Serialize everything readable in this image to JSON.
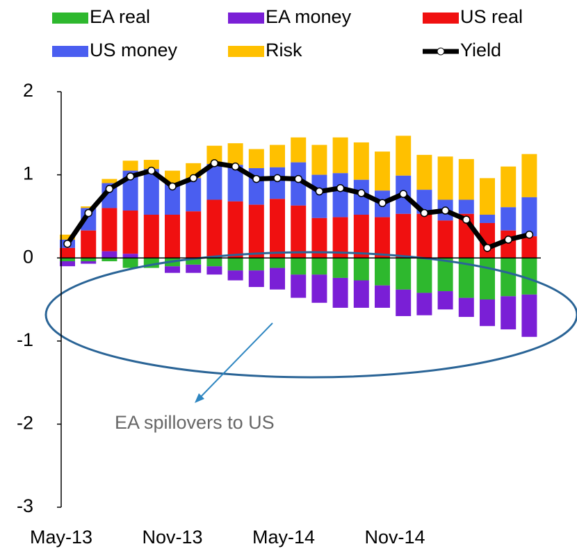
{
  "chart_data": {
    "type": "bar",
    "categories": [
      "May-13",
      null,
      null,
      null,
      null,
      null,
      "Nov-13",
      null,
      null,
      null,
      null,
      null,
      "May-14",
      null,
      null,
      null,
      null,
      null,
      "Nov-14",
      null,
      null,
      null,
      null
    ],
    "series": [
      {
        "name": "EA real",
        "color": "#2eb82e",
        "values": [
          -0.04,
          -0.04,
          -0.04,
          -0.12,
          -0.12,
          -0.1,
          -0.08,
          -0.1,
          -0.15,
          -0.15,
          -0.12,
          -0.2,
          -0.2,
          -0.24,
          -0.27,
          -0.33,
          -0.38,
          -0.42,
          -0.4,
          -0.48,
          -0.5,
          -0.46,
          -0.44
        ]
      },
      {
        "name": "EA money",
        "color": "#7a1fd6",
        "values": [
          -0.06,
          -0.03,
          0.08,
          0.05,
          0,
          -0.08,
          -0.1,
          -0.1,
          -0.12,
          -0.2,
          -0.26,
          -0.28,
          -0.34,
          -0.36,
          -0.33,
          -0.27,
          -0.32,
          -0.27,
          -0.22,
          -0.23,
          -0.32,
          -0.4,
          -0.51
        ]
      },
      {
        "name": "US real",
        "color": "#f01010",
        "values": [
          0.12,
          0.33,
          0.52,
          0.52,
          0.52,
          0.52,
          0.56,
          0.7,
          0.68,
          0.64,
          0.71,
          0.63,
          0.48,
          0.49,
          0.52,
          0.49,
          0.53,
          0.53,
          0.45,
          0.53,
          0.42,
          0.33,
          0.26
        ]
      },
      {
        "name": "US money",
        "color": "#4a5ef0",
        "values": [
          0.1,
          0.27,
          0.3,
          0.48,
          0.55,
          0.38,
          0.4,
          0.43,
          0.44,
          0.44,
          0.38,
          0.52,
          0.52,
          0.53,
          0.42,
          0.32,
          0.46,
          0.29,
          0.25,
          0.17,
          0.1,
          0.28,
          0.47
        ]
      },
      {
        "name": "Risk",
        "color": "#ffc000",
        "values": [
          0.06,
          0.02,
          0.05,
          0.12,
          0.11,
          0.15,
          0.18,
          0.22,
          0.26,
          0.23,
          0.27,
          0.3,
          0.36,
          0.43,
          0.45,
          0.47,
          0.48,
          0.42,
          0.52,
          0.49,
          0.44,
          0.49,
          0.52
        ]
      },
      {
        "name": "Yield",
        "type": "line",
        "color": "#000000",
        "values": [
          0.17,
          0.54,
          0.83,
          0.98,
          1.05,
          0.86,
          0.96,
          1.14,
          1.1,
          0.95,
          0.96,
          0.95,
          0.8,
          0.84,
          0.78,
          0.66,
          0.77,
          0.54,
          0.57,
          0.46,
          0.12,
          0.22,
          0.28
        ]
      }
    ],
    "ylim": [
      -3,
      2
    ],
    "yticks": [
      -3,
      -2,
      -1,
      0,
      1,
      2
    ],
    "annotation": "EA spillovers to US"
  }
}
